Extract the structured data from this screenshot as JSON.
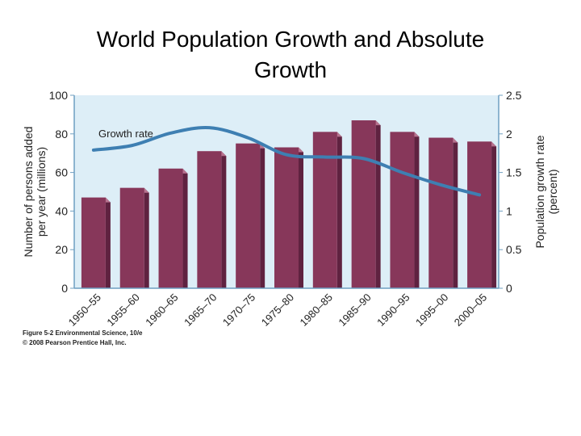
{
  "slide": {
    "title_line1": "World Population Growth and Absolute",
    "title_line2": "Growth"
  },
  "caption": {
    "figure_line": "Figure 5-2 Environmental Science, 10/e",
    "copyright_line": "© 2008 Pearson Prentice Hall, Inc."
  },
  "colors": {
    "plot_background": "#ddeef7",
    "bar_front": "#87375a",
    "bar_side": "#5f2240",
    "bar_top": "#b7738f",
    "line": "#3e7fb2",
    "axis": "#6f9fc2"
  },
  "chart_data": {
    "type": "bar",
    "categories": [
      "1950–55",
      "1955–60",
      "1960–65",
      "1965–70",
      "1970–75",
      "1975–80",
      "1980–85",
      "1985–90",
      "1990–95",
      "1995–00",
      "2000–05"
    ],
    "series": [
      {
        "values": [
          47,
          52,
          62,
          71,
          75,
          73,
          81,
          87,
          81,
          78,
          76
        ],
        "axis": "left",
        "render": "bar"
      },
      {
        "name": "Growth rate",
        "values": [
          1.79,
          1.85,
          2.01,
          2.08,
          1.95,
          1.73,
          1.7,
          1.68,
          1.5,
          1.34,
          1.21
        ],
        "axis": "right",
        "render": "line"
      }
    ],
    "ylabel": "Number of persons added per year (millions)",
    "ylabel_line1": "Number of persons added",
    "ylabel_line2": "per year (millions)",
    "y2label_line1": "Population growth rate",
    "y2label_line2": "(percent)",
    "ylim": [
      0,
      100
    ],
    "y2lim": [
      0,
      2.5
    ],
    "yticks": [
      "0",
      "20",
      "40",
      "60",
      "80",
      "100"
    ],
    "y2ticks": [
      "0",
      "0.5",
      "1",
      "1.5",
      "2",
      "2.5"
    ],
    "line_label": "Growth rate",
    "grid": false,
    "legend": "none"
  }
}
